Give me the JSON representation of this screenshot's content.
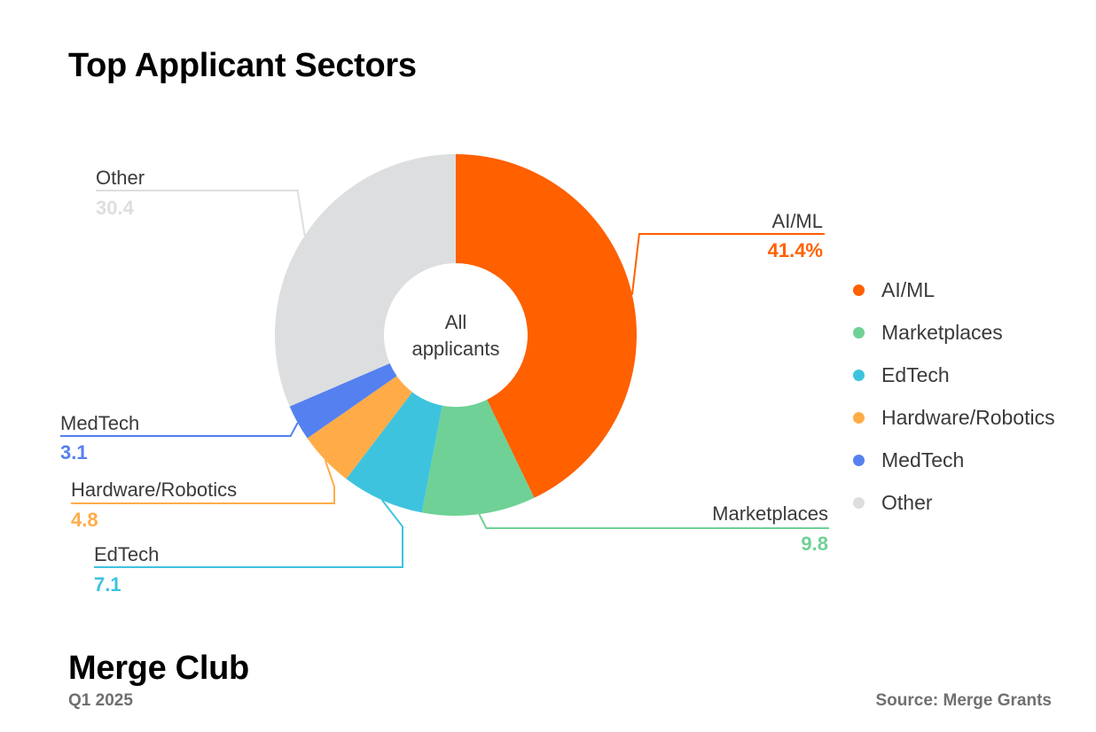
{
  "title": "Top Applicant Sectors",
  "chart_data": {
    "type": "pie",
    "variant": "donut",
    "center_label": [
      "All",
      "applicants"
    ],
    "categories": [
      "AI/ML",
      "Marketplaces",
      "EdTech",
      "Hardware/Robotics",
      "MedTech",
      "Other"
    ],
    "values": [
      41.4,
      9.8,
      7.1,
      4.8,
      3.1,
      30.4
    ],
    "value_labels": [
      "41.4%",
      "9.8",
      "7.1",
      "4.8",
      "3.1",
      "30.4"
    ],
    "colors": [
      "#ff6000",
      "#6fd195",
      "#3ec3de",
      "#ffac48",
      "#5580f0",
      "#dddedf"
    ],
    "legend_position": "right",
    "legend": [
      "AI/ML",
      "Marketplaces",
      "EdTech",
      "Hardware/Robotics",
      "MedTech",
      "Other"
    ]
  },
  "footer": {
    "brand": "Merge Club",
    "period": "Q1 2025",
    "source": "Source: Merge Grants"
  }
}
